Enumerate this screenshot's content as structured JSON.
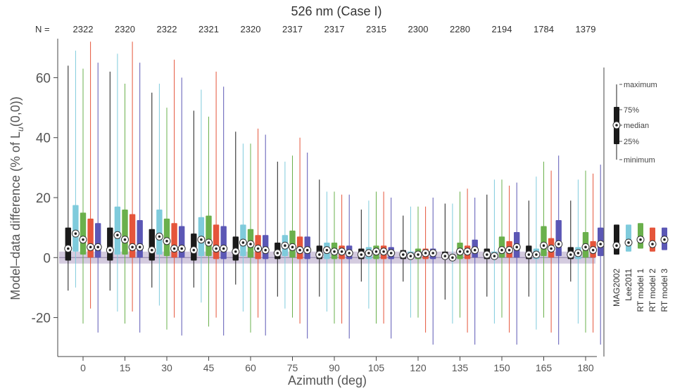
{
  "chart_data": {
    "type": "box",
    "title": "526 nm (Case I)",
    "n_prefix": "N =",
    "n_values": [
      "2322",
      "2320",
      "2322",
      "2321",
      "2320",
      "2317",
      "2317",
      "2315",
      "2300",
      "2280",
      "2194",
      "1784",
      "1379"
    ],
    "xlabel": "Azimuth (deg)",
    "ylabel_main": "Model–data difference (% of L",
    "ylabel_sub": "u",
    "ylabel_tail": "(0,0))",
    "categories": [
      "0",
      "15",
      "30",
      "45",
      "60",
      "75",
      "90",
      "105",
      "120",
      "135",
      "150",
      "165",
      "180"
    ],
    "ylim": [
      -33,
      73
    ],
    "yticks": [
      -20,
      0,
      20,
      40,
      60
    ],
    "series": [
      {
        "name": "MAG2002",
        "color": "#1a1a1a",
        "stats": [
          [
            -11,
            -1,
            3,
            10,
            64
          ],
          [
            -11,
            -1,
            2.5,
            10,
            62
          ],
          [
            -10,
            -1,
            2.5,
            9.5,
            55
          ],
          [
            -10,
            -1,
            2.5,
            8,
            49
          ],
          [
            -9,
            -1,
            2,
            7,
            42
          ],
          [
            -13,
            -0.5,
            1.5,
            5,
            32
          ],
          [
            -13,
            -0.5,
            1,
            4,
            26
          ],
          [
            -8,
            -0.5,
            1,
            3,
            16
          ],
          [
            -8,
            -0.5,
            1,
            2.5,
            14
          ],
          [
            -14,
            -0.5,
            0.5,
            2,
            18
          ],
          [
            -13,
            -0.5,
            1,
            3,
            21
          ],
          [
            -13,
            -0.5,
            1,
            4,
            19
          ],
          [
            -8,
            -0.5,
            1,
            3.5,
            19
          ]
        ]
      },
      {
        "name": "Lee2011",
        "color": "#7fcbdc",
        "stats": [
          [
            -10,
            2,
            8,
            17.5,
            69
          ],
          [
            -18,
            1,
            7.5,
            17,
            68
          ],
          [
            -16,
            1,
            7,
            16,
            58
          ],
          [
            -15,
            0.5,
            6,
            13.5,
            56
          ],
          [
            -18,
            0.5,
            5,
            11,
            38
          ],
          [
            -17,
            0.5,
            4,
            7.5,
            32
          ],
          [
            -18,
            -0.5,
            2.5,
            5,
            22
          ],
          [
            -17,
            -0.5,
            1.5,
            3.5,
            19
          ],
          [
            -20,
            -0.5,
            0.5,
            2,
            17
          ],
          [
            -22,
            -1,
            0,
            1,
            18
          ],
          [
            -22,
            -0.5,
            0.5,
            2,
            26
          ],
          [
            -24,
            -0.5,
            1,
            3,
            27
          ],
          [
            -22,
            -0.5,
            1.5,
            3.5,
            26
          ]
        ]
      },
      {
        "name": "RT model 1",
        "color": "#6ab04c",
        "stats": [
          [
            -22,
            1,
            6,
            15,
            63
          ],
          [
            -22,
            1,
            6,
            16,
            58
          ],
          [
            -24,
            0.5,
            5.5,
            13,
            50
          ],
          [
            -23,
            0.5,
            5,
            14,
            47
          ],
          [
            -25,
            0,
            4.5,
            9.5,
            38
          ],
          [
            -20,
            0,
            3.5,
            9,
            34
          ],
          [
            -22,
            -0.5,
            2,
            5,
            22
          ],
          [
            -22,
            -0.5,
            2,
            4,
            22
          ],
          [
            -20,
            -0.5,
            1,
            3,
            17
          ],
          [
            -20,
            -0.5,
            2,
            5,
            22
          ],
          [
            -20,
            0,
            2.5,
            7,
            26
          ],
          [
            -20,
            0.5,
            4,
            10.5,
            32
          ],
          [
            -25,
            0,
            3.5,
            8.5,
            29
          ]
        ]
      },
      {
        "name": "RT model 2",
        "color": "#e5553b",
        "stats": [
          [
            -17,
            0,
            3.5,
            13,
            72
          ],
          [
            -18,
            0,
            3.5,
            14.5,
            72
          ],
          [
            -20,
            0,
            3,
            11.5,
            66
          ],
          [
            -20,
            -0.5,
            3,
            11,
            62
          ],
          [
            -20,
            -0.5,
            3,
            7.5,
            43
          ],
          [
            -22,
            -0.5,
            2.5,
            7,
            40
          ],
          [
            -22,
            -0.5,
            2,
            4,
            21
          ],
          [
            -22,
            -0.5,
            2,
            4,
            22
          ],
          [
            -25,
            -0.5,
            1.5,
            3,
            17
          ],
          [
            -25,
            -0.5,
            2,
            4,
            23
          ],
          [
            -25,
            0,
            2.5,
            5.5,
            24
          ],
          [
            -25,
            0,
            3,
            6.5,
            29
          ],
          [
            -25,
            0,
            2.5,
            5.5,
            28
          ]
        ]
      },
      {
        "name": "RT model 3",
        "color": "#5b57b5",
        "stats": [
          [
            -25,
            0,
            3.5,
            11.5,
            65
          ],
          [
            -25,
            0,
            3.5,
            12.5,
            65
          ],
          [
            -26,
            0,
            3,
            10.5,
            60
          ],
          [
            -26,
            -0.5,
            3,
            10.5,
            57
          ],
          [
            -26,
            -0.5,
            2.5,
            7.5,
            41
          ],
          [
            -27,
            -0.5,
            2.5,
            7,
            35
          ],
          [
            -27,
            -0.5,
            1.5,
            4,
            21
          ],
          [
            -27,
            -0.5,
            1.5,
            3.5,
            20
          ],
          [
            -29,
            -0.5,
            1.5,
            3,
            20
          ],
          [
            -29,
            0,
            2.5,
            6,
            20
          ],
          [
            -29,
            0,
            3.5,
            8.5,
            25
          ],
          [
            -29,
            0.5,
            4.5,
            12.5,
            34
          ],
          [
            -29,
            0.5,
            4.5,
            10,
            31
          ]
        ]
      }
    ],
    "legend_stats": [
      {
        "name": "MAG2002",
        "color": "#1a1a1a",
        "q1": 1,
        "median": 4,
        "q3": 11
      },
      {
        "name": "Lee2011",
        "color": "#7fcbdc",
        "q1": 2,
        "median": 5,
        "q3": 11
      },
      {
        "name": "RT model 1",
        "color": "#6ab04c",
        "q1": 3,
        "median": 6,
        "q3": 11.5
      },
      {
        "name": "RT model 2",
        "color": "#e5553b",
        "q1": 2,
        "median": 4.5,
        "q3": 10
      },
      {
        "name": "RT model 3",
        "color": "#5b57b5",
        "q1": 2.5,
        "median": 6,
        "q3": 10
      }
    ],
    "key_labels": {
      "maximum": "maximum",
      "q3": "75%",
      "median": "median",
      "q1": "25%",
      "minimum": "minimum"
    },
    "band_color": "#b7a9c9"
  }
}
